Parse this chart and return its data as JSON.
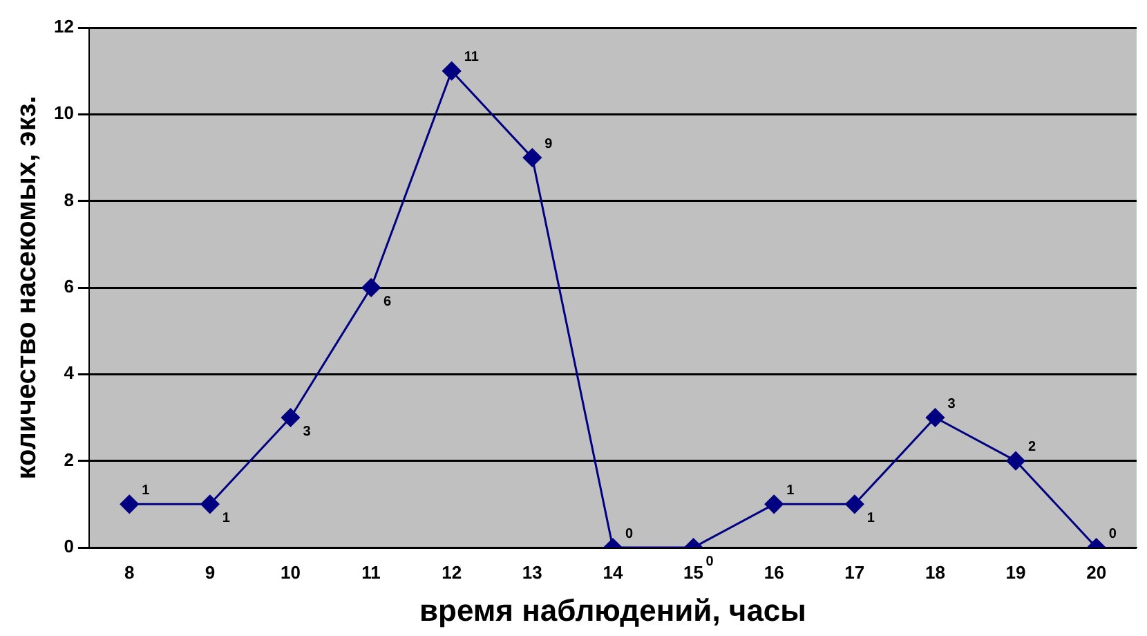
{
  "chart_data": {
    "type": "line",
    "xlabel": "время наблюдений, часы",
    "ylabel": "количество насекомых, экз.",
    "categories": [
      "8",
      "9",
      "10",
      "11",
      "12",
      "13",
      "14",
      "15",
      "16",
      "17",
      "18",
      "19",
      "20"
    ],
    "series": [
      {
        "color": "#000080",
        "values": [
          1,
          1,
          3,
          6,
          11,
          9,
          0,
          0,
          1,
          1,
          3,
          2,
          0
        ]
      }
    ],
    "ylim": [
      0,
      12
    ],
    "yticks": [
      0,
      2,
      4,
      6,
      8,
      10,
      12
    ],
    "grid": "y",
    "legend": false,
    "marker": "diamond",
    "line_style": "solid",
    "data_labels": true
  }
}
